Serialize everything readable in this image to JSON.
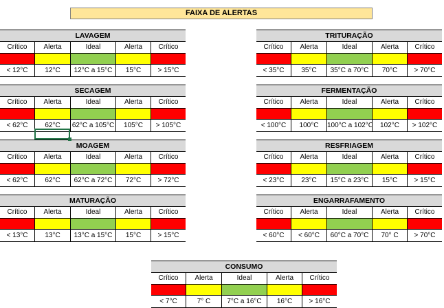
{
  "title": "FAIXA DE ALERTAS",
  "colors": {
    "critical": "#ff0000",
    "alert": "#ffff00",
    "ideal": "#92d050",
    "header": "#d9d9d9",
    "title_bg": "#ffe699"
  },
  "blocks": [
    {
      "name": "LAVAGEM",
      "labels": [
        "Crítico",
        "Alerta",
        "Ideal",
        "Alerta",
        "Crítico"
      ],
      "values": [
        "< 12°C",
        "12°C",
        "12°C a 15°C",
        "15°C",
        "> 15°C"
      ]
    },
    {
      "name": "TRITURAÇÃO",
      "labels": [
        "Crítico",
        "Alerta",
        "Ideal",
        "Alerta",
        "Crítico"
      ],
      "values": [
        "< 35°C",
        "35°C",
        "35°C a 70°C",
        "70°C",
        "> 70°C"
      ]
    },
    {
      "name": "SECAGEM",
      "labels": [
        "Crítico",
        "Alerta",
        "Ideal",
        "Alerta",
        "Crítico"
      ],
      "values": [
        "< 62°C",
        "62°C",
        "62°C a 105°C",
        "105°C",
        "> 105°C"
      ]
    },
    {
      "name": "FERMENTAÇÃO",
      "labels": [
        "Crítico",
        "Alerta",
        "Ideal",
        "Alerta",
        "Crítico"
      ],
      "values": [
        "< 100°C",
        "100°C",
        "100°C a 102°C",
        "102°C",
        "> 102°C"
      ]
    },
    {
      "name": "MOAGEM",
      "labels": [
        "Crítico",
        "Alerta",
        "Ideal",
        "Alerta",
        "Crítico"
      ],
      "values": [
        "< 62°C",
        "62°C",
        "62°C a 72°C",
        "72°C",
        "> 72°C"
      ]
    },
    {
      "name": "RESFRIAGEM",
      "labels": [
        "Crítico",
        "Alerta",
        "Ideal",
        "Alerta",
        "Crítico"
      ],
      "values": [
        "< 23°C",
        "23°C",
        "15°C a 23°C",
        "15°C",
        "> 15°C"
      ]
    },
    {
      "name": "MATURAÇÃO",
      "labels": [
        "Crítico",
        "Alerta",
        "Ideal",
        "Alerta",
        "Crítico"
      ],
      "values": [
        "< 13°C",
        "13°C",
        "13°C a 15°C",
        "15°C",
        "> 15°C"
      ]
    },
    {
      "name": "ENGARRAFAMENTO",
      "labels": [
        "Crítico",
        "Alerta",
        "Ideal",
        "Alerta",
        "Crítico"
      ],
      "values": [
        "< 60°C",
        "< 60°C",
        "60°C a 70°C",
        "70° C",
        "> 70°C"
      ]
    },
    {
      "name": "CONSUMO",
      "labels": [
        "Crítico",
        "Alerta",
        "Ideal",
        "Alerta",
        "Crítico"
      ],
      "values": [
        "< 7°C",
        "7° C",
        "7°C a 16°C",
        "16°C",
        "> 16°C"
      ]
    }
  ]
}
